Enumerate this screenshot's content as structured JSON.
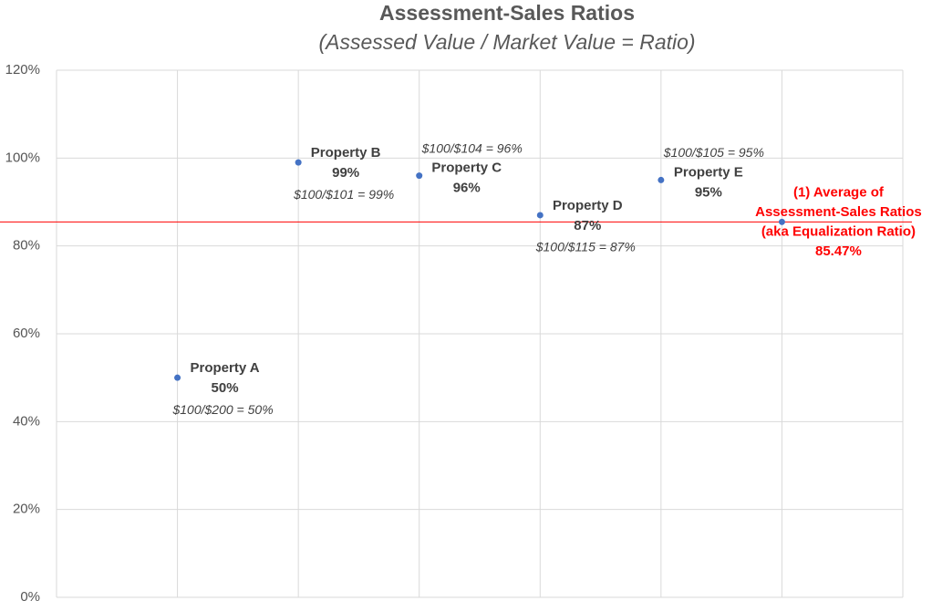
{
  "chart_data": {
    "type": "scatter",
    "title": "Assessment-Sales Ratios",
    "subtitle": "(Assessed Value / Market Value = Ratio)",
    "x": [
      1,
      2,
      3,
      4,
      5,
      6
    ],
    "series": [
      {
        "color": "#4472c4",
        "values": [
          50,
          99,
          96,
          87,
          95,
          85.47
        ]
      }
    ],
    "point_labels": [
      [
        "Property A"
      ],
      [
        "Property B"
      ],
      [
        "Property C"
      ],
      [
        "Property D"
      ],
      [
        "Property E"
      ],
      [
        "(1) Average of",
        "Assessment-Sales Ratios",
        "(aka Equalization Ratio)"
      ]
    ],
    "value_labels": [
      "50%",
      "99%",
      "96%",
      "87%",
      "95%",
      "85.47%"
    ],
    "formulas": [
      "$100/$200 = 50%",
      "$100/$101 = 99%",
      "$100/$104 = 96%",
      "$100/$115 = 87%",
      "$100/$105 = 95%",
      null
    ],
    "highlight_color": "#ff0000",
    "xlim": [
      0,
      7
    ],
    "xticks": [
      0,
      1,
      2,
      3,
      4,
      5,
      6,
      7
    ],
    "ylim": [
      0,
      120
    ],
    "yticks": [
      {
        "value": 0,
        "label": "0%"
      },
      {
        "value": 20,
        "label": "20%"
      },
      {
        "value": 40,
        "label": "40%"
      },
      {
        "value": 60,
        "label": "60%"
      },
      {
        "value": 80,
        "label": "80%"
      },
      {
        "value": 100,
        "label": "100%"
      },
      {
        "value": 120,
        "label": "120%"
      }
    ],
    "grid": true
  }
}
